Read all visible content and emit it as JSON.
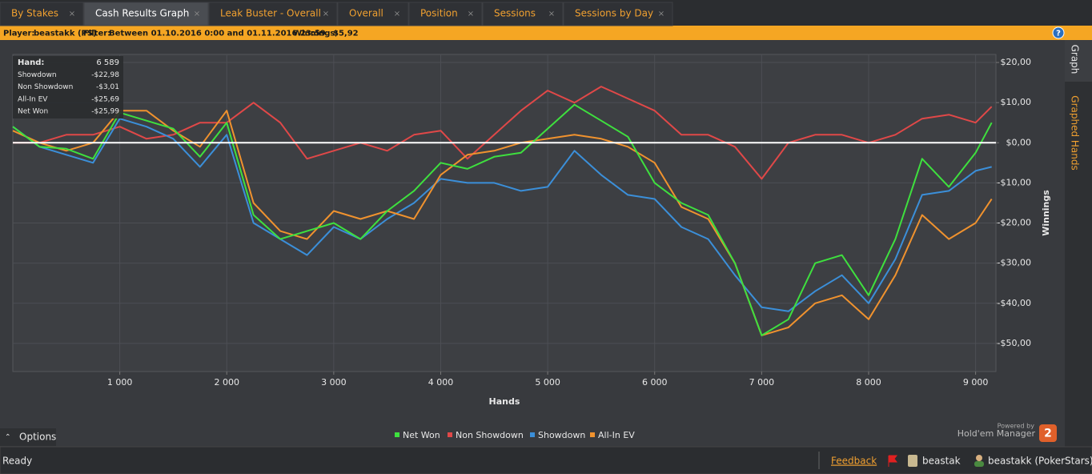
{
  "tabs": [
    "By Stakes",
    "Cash Results Graph",
    "Leak Buster - Overall",
    "Overall",
    "Position",
    "Sessions",
    "Sessions by Day"
  ],
  "active_tab": 1,
  "filter_bar": {
    "player_label": "Player:",
    "player": "beastakk (PS)",
    "filter_label": "Filter:",
    "filter": "Between 01.10.2016 0:00 and 01.11.2016 23:59",
    "winnings_label": "Winnings:",
    "winnings": "$5,92"
  },
  "side_tabs": [
    "Graph",
    "Graphed Hands"
  ],
  "options": "Options",
  "branding": {
    "powered_by": "Powered by",
    "product": "Hold'em Manager",
    "version": "2"
  },
  "status": {
    "state": "Ready",
    "feedback": "Feedback",
    "user": "beastak",
    "player": "beastakk (PokerStars)"
  },
  "chart_data": {
    "type": "line",
    "x_label": "Hands",
    "y_label": "Winnings",
    "grid": true,
    "legend": "bottom",
    "stats": [
      {
        "label": "Hand:",
        "value": "6 589"
      },
      {
        "label": "Showdown",
        "value": "-$22,98"
      },
      {
        "label": "Non Showdown",
        "value": "-$3,01"
      },
      {
        "label": "All-In EV",
        "value": "-$25,69"
      },
      {
        "label": "Net Won",
        "value": "-$25,99"
      }
    ],
    "xlim": [
      0,
      9190
    ],
    "xticks": [
      {
        "value": 1000,
        "label": "1 000"
      },
      {
        "value": 2000,
        "label": "2 000"
      },
      {
        "value": 3000,
        "label": "3 000"
      },
      {
        "value": 4000,
        "label": "4 000"
      },
      {
        "value": 5000,
        "label": "5 000"
      },
      {
        "value": 6000,
        "label": "6 000"
      },
      {
        "value": 7000,
        "label": "7 000"
      },
      {
        "value": 8000,
        "label": "8 000"
      },
      {
        "value": 9000,
        "label": "9 000"
      }
    ],
    "ylim": [
      -57,
      22
    ],
    "yticks": [
      {
        "value": -50,
        "label": "-$50,00"
      },
      {
        "value": -40,
        "label": "-$40,00"
      },
      {
        "value": -30,
        "label": "-$30,00"
      },
      {
        "value": -20,
        "label": "-$20,00"
      },
      {
        "value": -10,
        "label": "-$10,00"
      },
      {
        "value": 0,
        "label": "$0,00"
      },
      {
        "value": 10,
        "label": "$10,00"
      },
      {
        "value": 20,
        "label": "$20,00"
      }
    ],
    "x": [
      0,
      250,
      500,
      750,
      1000,
      1250,
      1500,
      1750,
      2000,
      2250,
      2500,
      2750,
      3000,
      3250,
      3500,
      3750,
      4000,
      4250,
      4500,
      4750,
      5000,
      5250,
      5500,
      5750,
      6000,
      6250,
      6500,
      6750,
      7000,
      7250,
      7500,
      7750,
      8000,
      8250,
      8500,
      8750,
      9000,
      9150
    ],
    "series": [
      {
        "name": "Net Won",
        "color": "#3ee03e",
        "values": [
          4,
          -1,
          -1.5,
          -4,
          7.5,
          5.5,
          3.5,
          -3.5,
          5,
          -18,
          -24,
          -22,
          -20,
          -24,
          -17,
          -12,
          -5,
          -6.5,
          -3.5,
          -2.5,
          3.5,
          9.5,
          5.5,
          1.5,
          -10,
          -15,
          -18,
          -30,
          -48,
          -44,
          -30,
          -28,
          -38,
          -24,
          -4,
          -11,
          -2.5,
          5
        ]
      },
      {
        "name": "Non Showdown",
        "color": "#e04848",
        "values": [
          0,
          0,
          2,
          2,
          4,
          1,
          2,
          5,
          5,
          10,
          5,
          -4,
          -2,
          0,
          -2,
          2,
          3,
          -4,
          2,
          8,
          13,
          10,
          14,
          11,
          8,
          2,
          2,
          -1,
          -9,
          0,
          2,
          2,
          0,
          2,
          6,
          7,
          5,
          9
        ]
      },
      {
        "name": "Showdown",
        "color": "#3b8fd9",
        "values": [
          4,
          -1,
          -3,
          -5,
          6,
          4,
          1,
          -6,
          2,
          -20,
          -24,
          -28,
          -21,
          -24,
          -19,
          -15,
          -9,
          -10,
          -10,
          -12,
          -11,
          -2,
          -8,
          -13,
          -14,
          -21,
          -24,
          -33,
          -41,
          -42,
          -37,
          -33,
          -40,
          -29,
          -13,
          -12,
          -7,
          -6
        ]
      },
      {
        "name": "All-In EV",
        "color": "#f0922e",
        "values": [
          3,
          0,
          -2,
          0,
          8,
          8,
          3,
          -1,
          8,
          -15,
          -22,
          -24,
          -17,
          -19,
          -17,
          -19,
          -8,
          -3,
          -2,
          0,
          1,
          2,
          1,
          -1,
          -5,
          -16,
          -19,
          -30,
          -48,
          -46,
          -40,
          -38,
          -44,
          -33,
          -18,
          -24,
          -20,
          -14
        ]
      }
    ]
  }
}
